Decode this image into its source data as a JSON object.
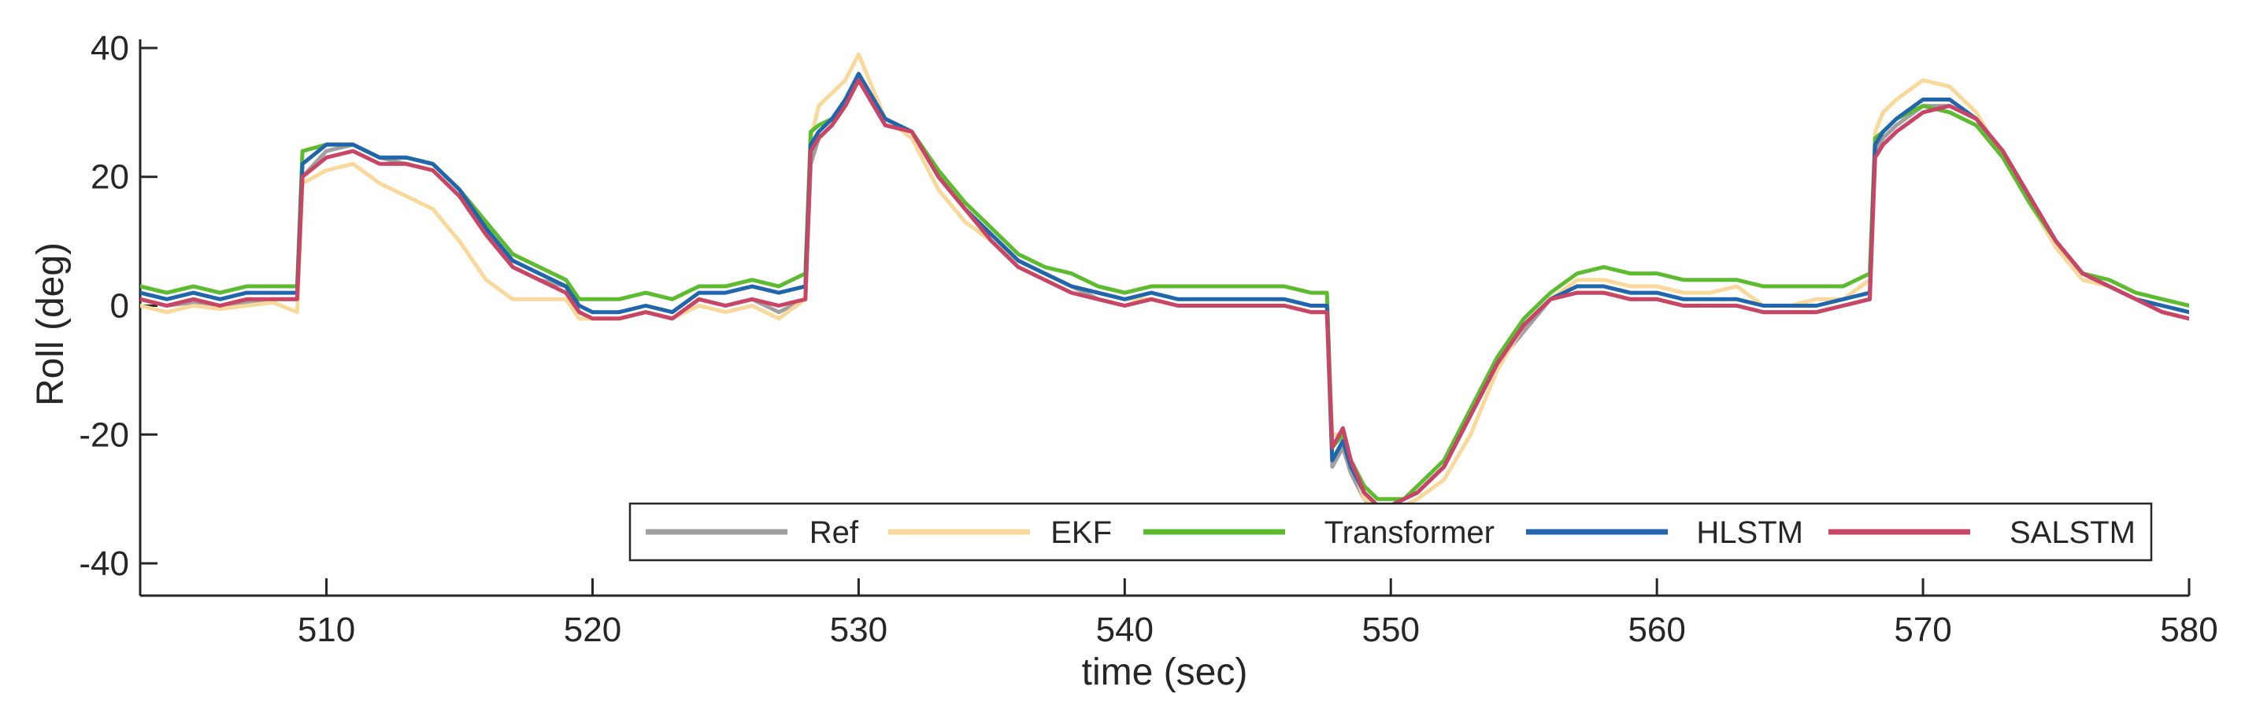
{
  "chart_data": {
    "type": "line",
    "xlabel": "time (sec)",
    "ylabel": "Roll (deg)",
    "xlim": [
      503,
      580
    ],
    "ylim": [
      -45,
      45
    ],
    "xticks": [
      510,
      520,
      530,
      540,
      550,
      560,
      570,
      580
    ],
    "yticks": [
      40,
      20,
      0,
      -20,
      -40
    ],
    "grid": false,
    "legend_position": "bottom-right, horizontal",
    "series": [
      {
        "name": "Ref",
        "color": "#a0a0a0",
        "x": [
          503,
          504,
          505,
          506,
          507,
          508,
          508.9,
          509.1,
          510,
          511,
          512,
          513,
          514,
          515,
          516,
          517,
          518,
          519,
          519.5,
          520,
          521,
          522,
          523,
          524,
          525,
          526,
          527,
          528,
          528.2,
          528.5,
          529,
          529.5,
          530,
          531,
          532,
          533,
          534,
          535,
          536,
          537,
          538,
          539,
          540,
          541,
          542,
          543,
          544,
          545,
          546,
          547,
          547.6,
          547.8,
          548.2,
          548.5,
          549,
          549.5,
          550,
          550.5,
          551,
          552,
          553,
          554,
          555,
          556,
          557,
          558,
          559,
          560,
          561,
          562,
          563,
          564,
          565,
          566,
          567,
          568,
          568.2,
          568.5,
          569,
          570,
          571,
          572,
          573,
          574,
          575,
          576,
          577,
          578,
          579,
          580
        ],
        "y": [
          1,
          0,
          0.5,
          0,
          0.5,
          1,
          1,
          20,
          24,
          25,
          23,
          22,
          21,
          17,
          12,
          6,
          4,
          3,
          -1,
          -2,
          -2,
          -1,
          -2,
          1,
          0,
          1,
          -1,
          1,
          22,
          26,
          28,
          31,
          35,
          28,
          27,
          20,
          15,
          11,
          7,
          5,
          3,
          1,
          0,
          1,
          0,
          0,
          0,
          0,
          0,
          -1,
          -1,
          -25,
          -22,
          -26,
          -30,
          -32,
          -31,
          -30,
          -29,
          -25,
          -17,
          -9,
          -4,
          1,
          2,
          2,
          1,
          1,
          0,
          0,
          0,
          -1,
          -1,
          -1,
          0,
          1,
          24,
          26,
          28,
          31,
          31,
          29,
          24,
          17,
          10,
          5,
          3,
          1,
          -1,
          -2
        ]
      },
      {
        "name": "EKF",
        "color": "#f9d99b",
        "x": [
          503,
          504,
          505,
          506,
          507,
          508,
          508.9,
          509.1,
          510,
          511,
          512,
          513,
          514,
          515,
          516,
          517,
          518,
          519,
          519.5,
          520,
          521,
          522,
          523,
          524,
          525,
          526,
          527,
          528,
          528.2,
          528.5,
          529,
          529.5,
          530,
          531,
          532,
          533,
          534,
          535,
          536,
          537,
          538,
          539,
          540,
          541,
          542,
          543,
          544,
          545,
          546,
          547,
          547.6,
          547.8,
          548.2,
          548.5,
          549,
          549.5,
          550,
          550.5,
          551,
          552,
          553,
          554,
          555,
          556,
          557,
          558,
          559,
          560,
          561,
          562,
          563,
          564,
          565,
          566,
          567,
          568,
          568.2,
          568.5,
          569,
          570,
          571,
          572,
          573,
          574,
          575,
          576,
          577,
          578,
          579,
          580
        ],
        "y": [
          0,
          -1,
          0,
          -0.5,
          0,
          0.5,
          -1,
          19,
          21,
          22,
          19,
          17,
          15,
          10,
          4,
          1,
          1,
          1,
          -2,
          -2,
          -2,
          -1,
          -2,
          0,
          -1,
          0,
          -2,
          1,
          26,
          31,
          33,
          35,
          39,
          29,
          26,
          18,
          13,
          10,
          7,
          5,
          3,
          2,
          1,
          1,
          0,
          0,
          0,
          0,
          0,
          -1,
          -1,
          -20,
          -20,
          -24,
          -30,
          -31,
          -31,
          -31,
          -30,
          -27,
          -20,
          -10,
          -3,
          1,
          4,
          4,
          3,
          3,
          2,
          2,
          3,
          0,
          0,
          1,
          1,
          4,
          27,
          30,
          32,
          35,
          34,
          30,
          23,
          16,
          9,
          4,
          3,
          1,
          0,
          -1
        ]
      },
      {
        "name": "Transformer",
        "color": "#5dbb2f",
        "x": [
          503,
          504,
          505,
          506,
          507,
          508,
          508.9,
          509.1,
          510,
          511,
          512,
          513,
          514,
          515,
          516,
          517,
          518,
          519,
          519.5,
          520,
          521,
          522,
          523,
          524,
          525,
          526,
          527,
          528,
          528.2,
          528.5,
          529,
          529.5,
          530,
          531,
          532,
          533,
          534,
          535,
          536,
          537,
          538,
          539,
          540,
          541,
          542,
          543,
          544,
          545,
          546,
          547,
          547.6,
          547.8,
          548.2,
          548.5,
          549,
          549.5,
          550,
          550.5,
          551,
          552,
          553,
          554,
          555,
          556,
          557,
          558,
          559,
          560,
          561,
          562,
          563,
          564,
          565,
          566,
          567,
          568,
          568.2,
          568.5,
          569,
          570,
          571,
          572,
          573,
          574,
          575,
          576,
          577,
          578,
          579,
          580
        ],
        "y": [
          3,
          2,
          3,
          2,
          3,
          3,
          3,
          24,
          25,
          25,
          23,
          23,
          22,
          18,
          13,
          8,
          6,
          4,
          1,
          1,
          1,
          2,
          1,
          3,
          3,
          4,
          3,
          5,
          27,
          28,
          29,
          32,
          35,
          29,
          27,
          21,
          16,
          12,
          8,
          6,
          5,
          3,
          2,
          3,
          3,
          3,
          3,
          3,
          3,
          2,
          2,
          -22,
          -20,
          -24,
          -28,
          -30,
          -30,
          -30,
          -28,
          -24,
          -16,
          -8,
          -2,
          2,
          5,
          6,
          5,
          5,
          4,
          4,
          4,
          3,
          3,
          3,
          3,
          5,
          26,
          27,
          29,
          31,
          30,
          28,
          23,
          16,
          10,
          5,
          4,
          2,
          1,
          0
        ]
      },
      {
        "name": "HLSTM",
        "color": "#2166ac",
        "x": [
          503,
          504,
          505,
          506,
          507,
          508,
          508.9,
          509.1,
          510,
          511,
          512,
          513,
          514,
          515,
          516,
          517,
          518,
          519,
          519.5,
          520,
          521,
          522,
          523,
          524,
          525,
          526,
          527,
          528,
          528.2,
          528.5,
          529,
          529.5,
          530,
          531,
          532,
          533,
          534,
          535,
          536,
          537,
          538,
          539,
          540,
          541,
          542,
          543,
          544,
          545,
          546,
          547,
          547.6,
          547.8,
          548.2,
          548.5,
          549,
          549.5,
          550,
          550.5,
          551,
          552,
          553,
          554,
          555,
          556,
          557,
          558,
          559,
          560,
          561,
          562,
          563,
          564,
          565,
          566,
          567,
          568,
          568.2,
          568.5,
          569,
          570,
          571,
          572,
          573,
          574,
          575,
          576,
          577,
          578,
          579,
          580
        ],
        "y": [
          2,
          1,
          2,
          1,
          2,
          2,
          2,
          22,
          25,
          25,
          23,
          23,
          22,
          18,
          12,
          7,
          5,
          3,
          0,
          -1,
          -1,
          0,
          -1,
          2,
          2,
          3,
          2,
          3,
          25,
          27,
          29,
          32,
          36,
          29,
          27,
          20,
          15,
          11,
          7,
          5,
          3,
          2,
          1,
          2,
          1,
          1,
          1,
          1,
          1,
          0,
          0,
          -24,
          -21,
          -25,
          -29,
          -31,
          -31,
          -30,
          -29,
          -25,
          -17,
          -9,
          -3,
          1,
          3,
          3,
          2,
          2,
          1,
          1,
          1,
          0,
          0,
          0,
          1,
          2,
          25,
          27,
          29,
          32,
          32,
          29,
          24,
          17,
          10,
          5,
          3,
          1,
          0,
          -1
        ]
      },
      {
        "name": "SALSTM",
        "color": "#c94566",
        "x": [
          503,
          504,
          505,
          506,
          507,
          508,
          508.9,
          509.1,
          510,
          511,
          512,
          513,
          514,
          515,
          516,
          517,
          518,
          519,
          519.5,
          520,
          521,
          522,
          523,
          524,
          525,
          526,
          527,
          528,
          528.2,
          528.5,
          529,
          529.5,
          530,
          531,
          532,
          533,
          534,
          535,
          536,
          537,
          538,
          539,
          540,
          541,
          542,
          543,
          544,
          545,
          546,
          547,
          547.6,
          547.8,
          548.2,
          548.5,
          549,
          549.5,
          550,
          550.5,
          551,
          552,
          553,
          554,
          555,
          556,
          557,
          558,
          559,
          560,
          561,
          562,
          563,
          564,
          565,
          566,
          567,
          568,
          568.2,
          568.5,
          569,
          570,
          571,
          572,
          573,
          574,
          575,
          576,
          577,
          578,
          579,
          580
        ],
        "y": [
          1,
          0,
          1,
          0,
          1,
          1,
          1,
          20,
          23,
          24,
          22,
          22,
          21,
          17,
          11,
          6,
          4,
          2,
          -1,
          -2,
          -2,
          -1,
          -2,
          1,
          0,
          1,
          0,
          1,
          24,
          26,
          28,
          31,
          35,
          28,
          27,
          20,
          15,
          10,
          6,
          4,
          2,
          1,
          0,
          1,
          0,
          0,
          0,
          0,
          0,
          -1,
          -1,
          -22,
          -19,
          -24,
          -29,
          -31,
          -31,
          -30,
          -29,
          -25,
          -17,
          -9,
          -3,
          1,
          2,
          2,
          1,
          1,
          0,
          0,
          0,
          -1,
          -1,
          -1,
          0,
          1,
          23,
          25,
          27,
          30,
          31,
          29,
          24,
          17,
          10,
          5,
          3,
          1,
          -1,
          -2
        ]
      }
    ]
  }
}
